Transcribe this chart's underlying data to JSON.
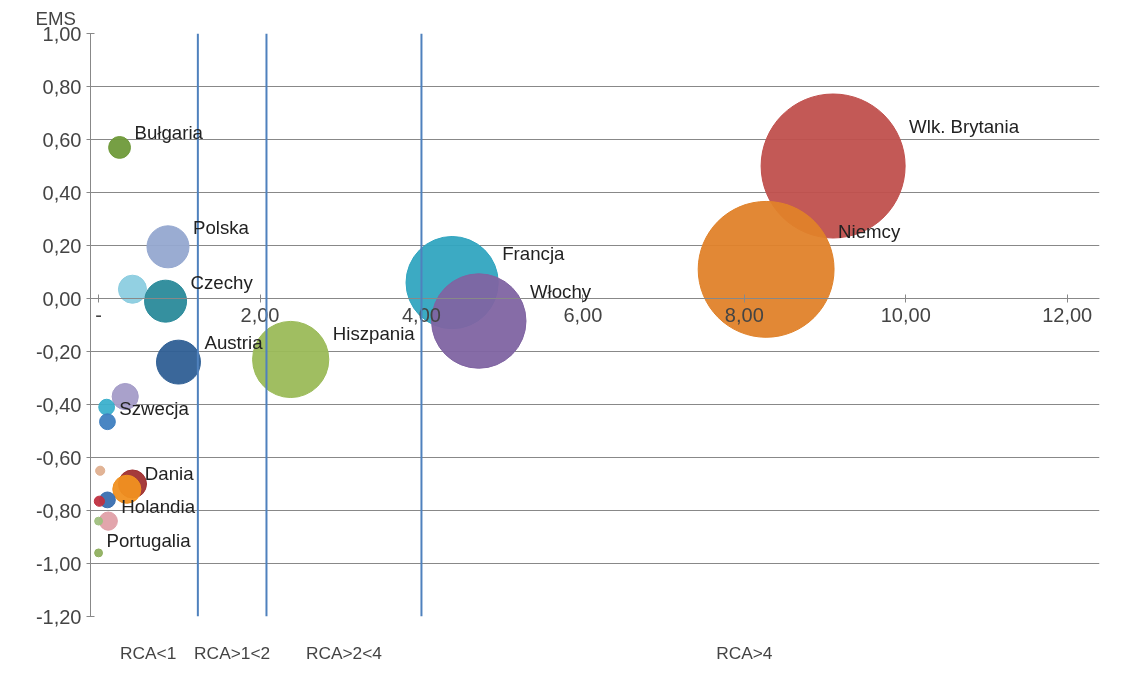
{
  "chart_data": {
    "type": "bubble",
    "ylabel": "EMS",
    "x": [
      9.1,
      8.27,
      4.38,
      4.71,
      2.38,
      0.86,
      0.42,
      0.83,
      0.99,
      0.26,
      0.33,
      0.1,
      0.11,
      0.42,
      0.35,
      0.11,
      0.01,
      0.12,
      0.02,
      0.0,
      0.0
    ],
    "values": [
      0.5,
      0.11,
      0.06,
      -0.085,
      -0.23,
      0.195,
      0.035,
      -0.01,
      -0.24,
      0.57,
      -0.37,
      -0.41,
      -0.465,
      -0.7,
      -0.72,
      -0.76,
      -0.765,
      -0.84,
      -0.65,
      -0.96,
      -0.84
    ],
    "sizes": [
      1,
      0.89,
      0.41,
      0.43,
      0.28,
      0.085,
      0.038,
      0.085,
      0.093,
      0.023,
      0.033,
      0.012,
      0.012,
      0.038,
      0.038,
      0.012,
      0.005,
      0.016,
      0.004,
      0.003,
      0.003
    ],
    "colors": [
      "#c0504d",
      "#e0822a",
      "#31a5c0",
      "#8064a2",
      "#9bbb59",
      "#95a8d0",
      "#8ccde0",
      "#2a8a9a",
      "#2f5f95",
      "#6f9a3a",
      "#a49cc8",
      "#3bb0cc",
      "#3f7fc0",
      "#a03030",
      "#f09020",
      "#3a6fb0",
      "#c03040",
      "#e0a0a8",
      "#e0b090",
      "#90b060",
      "#a0c080"
    ],
    "value_labels": [
      "Wlk. Brytania",
      "Niemcy",
      "Francja",
      "Włochy",
      "Hiszpania",
      "Polska",
      null,
      "Czechy",
      "Austria",
      "Bułgaria",
      null,
      null,
      "Szwecja",
      null,
      "Dania",
      null,
      null,
      "Holandia",
      null,
      "Portugalia",
      null
    ],
    "xlim": [
      -0.1,
      12.4
    ],
    "ylim": [
      -1.2,
      1.0
    ],
    "xticks": [
      {
        "value": 0,
        "label": "-"
      },
      {
        "value": 2,
        "label": "2,00"
      },
      {
        "value": 4,
        "label": "4,00"
      },
      {
        "value": 6,
        "label": "6,00"
      },
      {
        "value": 8,
        "label": "8,00"
      },
      {
        "value": 10,
        "label": "10,00"
      },
      {
        "value": 12,
        "label": "12,00"
      }
    ],
    "yticks": [
      {
        "value": -1.2,
        "label": "-1,20"
      },
      {
        "value": -1.0,
        "label": "-1,00"
      },
      {
        "value": -0.8,
        "label": "-0,80"
      },
      {
        "value": -0.6,
        "label": "-0,60"
      },
      {
        "value": -0.4,
        "label": "-0,40"
      },
      {
        "value": -0.2,
        "label": "-0,20"
      },
      {
        "value": 0.0,
        "label": "0,00"
      },
      {
        "value": 0.2,
        "label": "0,20"
      },
      {
        "value": 0.4,
        "label": "0,40"
      },
      {
        "value": 0.6,
        "label": "0,60"
      },
      {
        "value": 0.8,
        "label": "0,80"
      },
      {
        "value": 1.0,
        "label": "1,00"
      }
    ],
    "ref_lines": [
      {
        "axis": "x",
        "value": 1.23,
        "color": "#4f81bd"
      },
      {
        "axis": "x",
        "value": 2.08,
        "color": "#4f81bd"
      },
      {
        "axis": "x",
        "value": 4.0,
        "color": "#4f81bd"
      }
    ],
    "annotations": [
      "RCA<1",
      "RCA>1<2",
      "RCA>2<4",
      "RCA>4"
    ],
    "grid": "y"
  }
}
